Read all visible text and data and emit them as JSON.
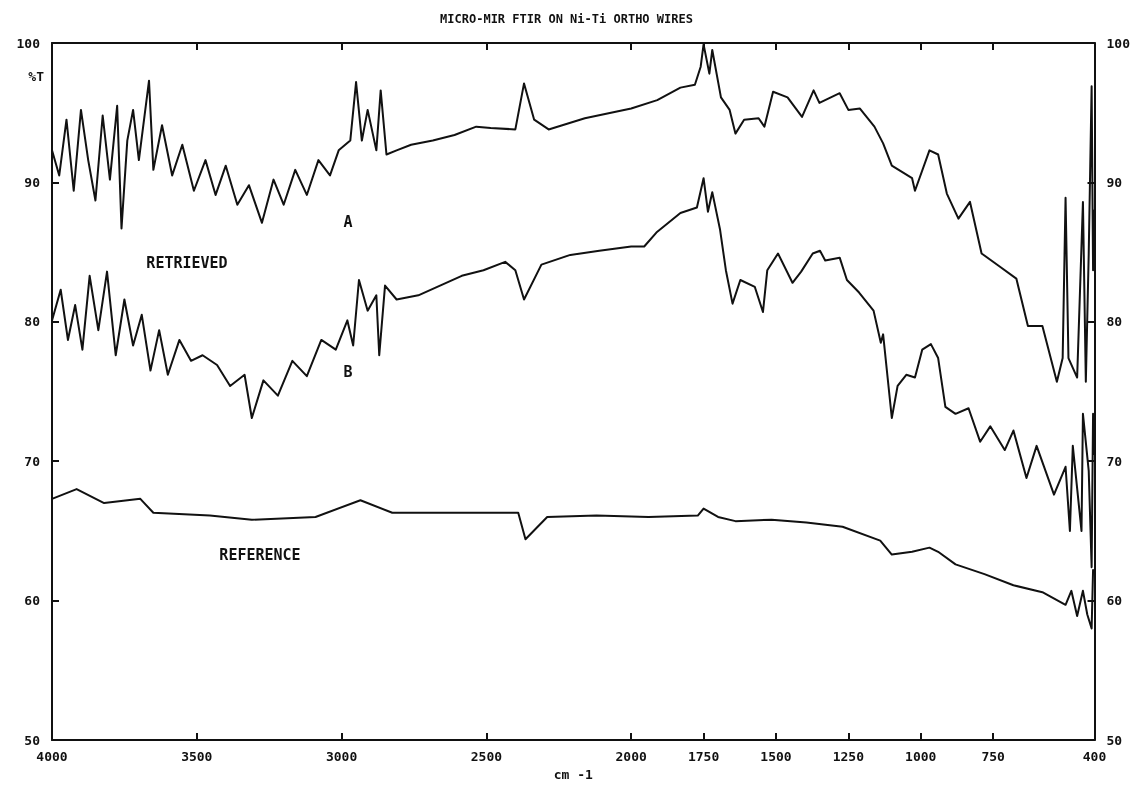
{
  "chart_data": {
    "type": "line",
    "title": "MICRO-MIR FTIR ON Ni-Ti ORTHO WIRES",
    "xlabel": "cm -1",
    "ylabel": "%T",
    "xlim": [
      4000,
      400
    ],
    "xticks": [
      4000,
      3500,
      3000,
      2500,
      2000,
      1750,
      1500,
      1250,
      1000,
      750,
      400
    ],
    "ylim": [
      50,
      100
    ],
    "yticks": [
      50,
      60,
      70,
      80,
      90,
      100
    ],
    "y2lim": [
      50,
      100
    ],
    "y2ticks": [
      50,
      60,
      70,
      80,
      90,
      100
    ],
    "grid": false,
    "marker": "none",
    "line_style": "solid",
    "annotations": [
      "A",
      "B",
      "RETRIEVED",
      "REFERENCE"
    ],
    "series": [
      {
        "color": "#111111",
        "x": [
          4000,
          3975,
          3950,
          3925,
          3900,
          3875,
          3850,
          3825,
          3800,
          3775,
          3760,
          3740,
          3720,
          3700,
          3665,
          3650,
          3620,
          3585,
          3550,
          3510,
          3470,
          3435,
          3400,
          3360,
          3320,
          3275,
          3235,
          3200,
          3160,
          3120,
          3080,
          3040,
          3010,
          2970,
          2950,
          2930,
          2910,
          2880,
          2865,
          2845,
          2810,
          2760,
          2685,
          2610,
          2535,
          2485,
          2400,
          2370,
          2335,
          2285,
          2160,
          2000,
          1910,
          1830,
          1780,
          1760,
          1750,
          1730,
          1720,
          1690,
          1660,
          1640,
          1610,
          1560,
          1540,
          1510,
          1460,
          1410,
          1370,
          1350,
          1280,
          1250,
          1210,
          1160,
          1130,
          1100,
          1030,
          1020,
          970,
          940,
          910,
          870,
          830,
          790,
          730,
          670,
          630,
          580,
          530,
          510,
          500,
          490,
          460,
          440,
          430,
          420,
          410,
          405,
          400
        ],
        "values": [
          92.3,
          90.5,
          94.5,
          89.4,
          95.2,
          91.6,
          88.7,
          94.8,
          90.2,
          95.5,
          86.7,
          93.0,
          95.2,
          91.6,
          97.3,
          90.9,
          94.1,
          90.5,
          92.7,
          89.4,
          91.6,
          89.1,
          91.2,
          88.4,
          89.8,
          87.1,
          90.2,
          88.4,
          90.9,
          89.1,
          91.6,
          90.5,
          92.3,
          93.0,
          97.2,
          93.0,
          95.2,
          92.3,
          96.6,
          92.0,
          92.3,
          92.7,
          93.0,
          93.4,
          94.0,
          93.9,
          93.8,
          97.1,
          94.5,
          93.8,
          94.6,
          95.3,
          95.9,
          96.8,
          97.0,
          98.3,
          99.9,
          97.8,
          99.5,
          96.1,
          95.2,
          93.5,
          94.5,
          94.6,
          94.0,
          96.5,
          96.1,
          94.7,
          96.6,
          95.7,
          96.4,
          95.2,
          95.3,
          94.0,
          92.8,
          91.2,
          90.3,
          89.4,
          92.3,
          92.0,
          89.2,
          87.4,
          88.6,
          84.9,
          84.0,
          83.1,
          79.7,
          79.7,
          75.7,
          77.4,
          88.9,
          77.4,
          76.0,
          88.6,
          75.7,
          84.9,
          96.9,
          83.7,
          88.0
        ]
      },
      {
        "color": "#111111",
        "x": [
          4000,
          3970,
          3945,
          3920,
          3895,
          3870,
          3840,
          3810,
          3780,
          3750,
          3720,
          3690,
          3660,
          3630,
          3600,
          3560,
          3520,
          3480,
          3430,
          3385,
          3335,
          3310,
          3270,
          3220,
          3170,
          3120,
          3070,
          3020,
          2980,
          2960,
          2940,
          2910,
          2880,
          2870,
          2850,
          2810,
          2735,
          2660,
          2585,
          2510,
          2435,
          2400,
          2370,
          2310,
          2210,
          2110,
          2000,
          1955,
          1913,
          1830,
          1773,
          1750,
          1735,
          1720,
          1693,
          1673,
          1650,
          1623,
          1573,
          1545,
          1530,
          1493,
          1443,
          1413,
          1373,
          1348,
          1330,
          1280,
          1255,
          1213,
          1163,
          1138,
          1130,
          1100,
          1080,
          1050,
          1020,
          995,
          965,
          940,
          915,
          880,
          835,
          795,
          760,
          710,
          680,
          635,
          600,
          540,
          500,
          485,
          475,
          445,
          440,
          420,
          410,
          405,
          400
        ],
        "values": [
          80.1,
          82.3,
          78.7,
          81.2,
          78.0,
          83.3,
          79.4,
          83.6,
          77.6,
          81.6,
          78.3,
          80.5,
          76.5,
          79.4,
          76.2,
          78.7,
          77.2,
          77.6,
          76.9,
          75.4,
          76.2,
          73.1,
          75.8,
          74.7,
          77.2,
          76.1,
          78.7,
          78.0,
          80.1,
          78.3,
          83.0,
          80.8,
          81.9,
          77.6,
          82.6,
          81.6,
          81.9,
          82.6,
          83.3,
          83.7,
          84.3,
          83.7,
          81.6,
          84.1,
          84.8,
          85.1,
          85.4,
          85.4,
          86.4,
          87.8,
          88.2,
          90.3,
          87.9,
          89.3,
          86.6,
          83.7,
          81.3,
          83.0,
          82.5,
          80.7,
          83.7,
          84.9,
          82.8,
          83.6,
          84.9,
          85.1,
          84.4,
          84.6,
          83.0,
          82.1,
          80.8,
          78.5,
          79.1,
          73.1,
          75.4,
          76.2,
          76.0,
          78.0,
          78.4,
          77.4,
          73.9,
          73.4,
          73.8,
          71.4,
          72.5,
          70.8,
          72.2,
          68.8,
          71.1,
          67.6,
          69.6,
          65.0,
          71.1,
          65.0,
          73.4,
          69.3,
          62.4,
          73.4,
          70.5
        ]
      },
      {
        "color": "#111111",
        "x": [
          4000,
          3915,
          3820,
          3695,
          3650,
          3455,
          3310,
          3090,
          2935,
          2825,
          2605,
          2390,
          2365,
          2290,
          2120,
          1940,
          1770,
          1750,
          1700,
          1640,
          1515,
          1395,
          1270,
          1140,
          1100,
          1030,
          970,
          940,
          880,
          780,
          680,
          580,
          500,
          480,
          460,
          440,
          425,
          410,
          405
        ],
        "values": [
          67.3,
          68.0,
          67.0,
          67.3,
          66.3,
          66.1,
          65.8,
          66.0,
          67.2,
          66.3,
          66.3,
          66.3,
          64.4,
          66.0,
          66.1,
          66.0,
          66.1,
          66.6,
          66.0,
          65.7,
          65.8,
          65.6,
          65.3,
          64.3,
          63.3,
          63.5,
          63.8,
          63.5,
          62.6,
          61.9,
          61.1,
          60.6,
          59.7,
          60.7,
          58.9,
          60.7,
          59.0,
          58.0,
          62.2
        ]
      }
    ]
  }
}
